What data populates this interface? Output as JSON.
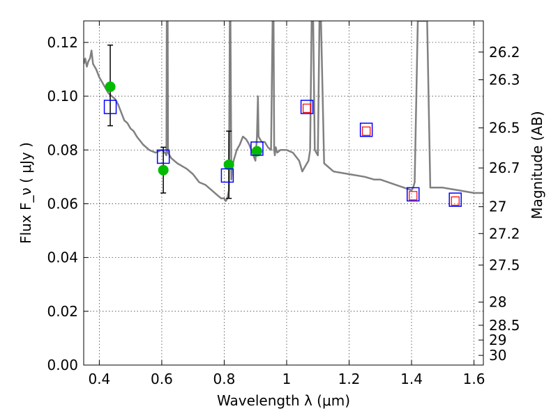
{
  "chart_data": {
    "type": "scatter",
    "xlabel": "Wavelength  λ (μm)",
    "ylabel": "Flux  F_ν  ( μJy )",
    "y2label": "Magnitude (AB)",
    "xlim": [
      0.35,
      1.63
    ],
    "ylim": [
      0.0,
      0.128
    ],
    "grid": true,
    "x_ticks": [
      {
        "value": 0.4,
        "label": "0.4"
      },
      {
        "value": 0.6,
        "label": "0.6"
      },
      {
        "value": 0.8,
        "label": "0.8"
      },
      {
        "value": 1.0,
        "label": "1"
      },
      {
        "value": 1.2,
        "label": "1.2"
      },
      {
        "value": 1.4,
        "label": "1.4"
      },
      {
        "value": 1.6,
        "label": "1.6"
      }
    ],
    "y_ticks": [
      {
        "value": 0.0,
        "label": "0.00"
      },
      {
        "value": 0.02,
        "label": "0.02"
      },
      {
        "value": 0.04,
        "label": "0.04"
      },
      {
        "value": 0.06,
        "label": "0.06"
      },
      {
        "value": 0.08,
        "label": "0.08"
      },
      {
        "value": 0.1,
        "label": "0.10"
      },
      {
        "value": 0.12,
        "label": "0.12"
      }
    ],
    "y2_ticks": [
      {
        "flux": 0.1164,
        "label": "26.2"
      },
      {
        "flux": 0.1061,
        "label": "26.3"
      },
      {
        "flux": 0.0882,
        "label": "26.5"
      },
      {
        "flux": 0.0733,
        "label": "26.7"
      },
      {
        "flux": 0.0589,
        "label": "27"
      },
      {
        "flux": 0.0489,
        "label": "27.2"
      },
      {
        "flux": 0.0372,
        "label": "27.5"
      },
      {
        "flux": 0.0234,
        "label": "28"
      },
      {
        "flux": 0.0148,
        "label": "28.5"
      },
      {
        "flux": 0.0093,
        "label": "29"
      },
      {
        "flux": 0.0036,
        "label": "30"
      }
    ],
    "series": [
      {
        "kind": "line",
        "color": "#808080",
        "x": [
          0.35,
          0.355,
          0.36,
          0.365,
          0.37,
          0.375,
          0.38,
          0.39,
          0.4,
          0.41,
          0.42,
          0.43,
          0.44,
          0.45,
          0.46,
          0.47,
          0.48,
          0.49,
          0.5,
          0.51,
          0.52,
          0.54,
          0.56,
          0.58,
          0.6,
          0.61,
          0.615,
          0.616,
          0.619,
          0.62,
          0.63,
          0.65,
          0.68,
          0.7,
          0.72,
          0.74,
          0.76,
          0.78,
          0.79,
          0.8,
          0.805,
          0.81,
          0.815,
          0.818,
          0.82,
          0.823,
          0.825,
          0.83,
          0.84,
          0.85,
          0.86,
          0.87,
          0.88,
          0.89,
          0.9,
          0.905,
          0.908,
          0.91,
          0.92,
          0.93,
          0.94,
          0.95,
          0.955,
          0.958,
          0.96,
          0.962,
          0.965,
          0.97,
          0.98,
          1.0,
          1.02,
          1.04,
          1.05,
          1.06,
          1.07,
          1.075,
          1.08,
          1.085,
          1.09,
          1.1,
          1.105,
          1.11,
          1.12,
          1.15,
          1.2,
          1.25,
          1.28,
          1.3,
          1.35,
          1.4,
          1.405,
          1.41,
          1.42,
          1.43,
          1.45,
          1.46,
          1.47,
          1.5,
          1.55,
          1.6,
          1.63
        ],
        "y": [
          0.112,
          0.114,
          0.111,
          0.113,
          0.114,
          0.117,
          0.112,
          0.11,
          0.107,
          0.105,
          0.103,
          0.101,
          0.1,
          0.099,
          0.097,
          0.094,
          0.091,
          0.09,
          0.088,
          0.087,
          0.085,
          0.082,
          0.08,
          0.079,
          0.08,
          0.079,
          0.078,
          0.128,
          0.128,
          0.079,
          0.077,
          0.075,
          0.073,
          0.071,
          0.068,
          0.067,
          0.065,
          0.063,
          0.062,
          0.062,
          0.061,
          0.062,
          0.065,
          0.128,
          0.128,
          0.069,
          0.073,
          0.076,
          0.08,
          0.082,
          0.085,
          0.084,
          0.082,
          0.079,
          0.076,
          0.085,
          0.1,
          0.085,
          0.083,
          0.083,
          0.081,
          0.08,
          0.128,
          0.128,
          0.08,
          0.078,
          0.081,
          0.079,
          0.08,
          0.08,
          0.079,
          0.076,
          0.072,
          0.074,
          0.076,
          0.08,
          0.128,
          0.128,
          0.08,
          0.078,
          0.128,
          0.128,
          0.075,
          0.072,
          0.071,
          0.07,
          0.069,
          0.069,
          0.067,
          0.065,
          0.066,
          0.068,
          0.128,
          0.128,
          0.128,
          0.066,
          0.066,
          0.066,
          0.065,
          0.064,
          0.064
        ]
      },
      {
        "kind": "points",
        "marker": "circle",
        "color": "#00bb00",
        "x": [
          0.435,
          0.605,
          0.815,
          0.905
        ],
        "y": [
          0.1035,
          0.0725,
          0.0745,
          0.0795
        ],
        "err_low": [
          0.089,
          0.064,
          0.062,
          null
        ],
        "err_high": [
          0.119,
          0.081,
          0.087,
          null
        ]
      },
      {
        "kind": "points",
        "marker": "square",
        "color": "#0000ff",
        "x": [
          0.435,
          0.605,
          0.81,
          0.905,
          1.065,
          1.255,
          1.405,
          1.54
        ],
        "y": [
          0.096,
          0.0775,
          0.0705,
          0.0805,
          0.096,
          0.0875,
          0.0635,
          0.0615
        ]
      },
      {
        "kind": "points",
        "marker": "square-small",
        "color": "#ff0000",
        "x": [
          1.065,
          1.255,
          1.405,
          1.54
        ],
        "y": [
          0.0955,
          0.087,
          0.063,
          0.061
        ]
      }
    ]
  }
}
